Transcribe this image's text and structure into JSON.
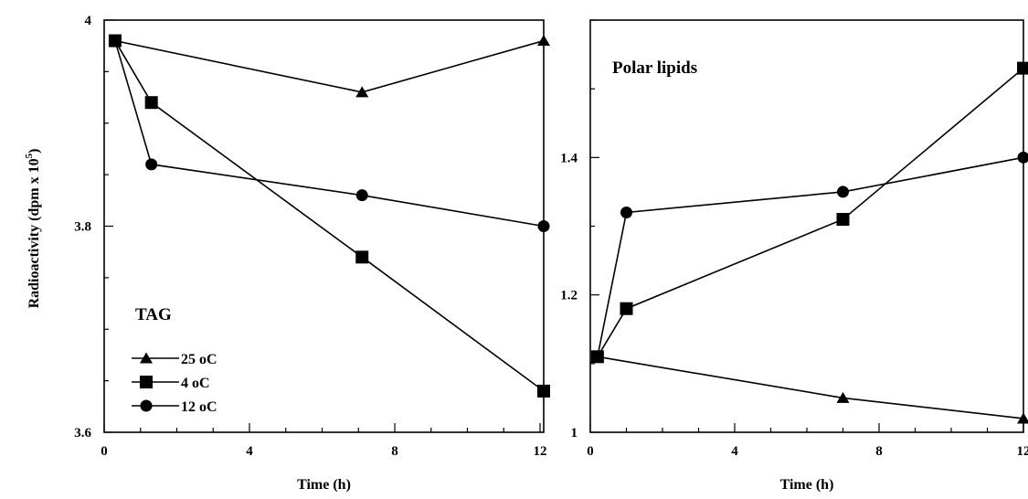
{
  "figure": {
    "ylabel": "Radioactivity (dpm x 10",
    "ylabel_sup": "5",
    "ylabel_end": ")"
  },
  "chart_data": [
    {
      "type": "line",
      "title": "TAG",
      "xlabel": "Time (h)",
      "xlim": [
        0,
        12.1
      ],
      "ylim": [
        3.6,
        4.0
      ],
      "xticks": [
        "0",
        "4",
        "8",
        "12"
      ],
      "xtick_values": [
        0,
        4,
        8,
        12
      ],
      "yticks": [
        "3.6",
        "3.8",
        "4"
      ],
      "ytick_values": [
        3.6,
        3.8,
        4.0
      ],
      "legend": {
        "position": "lower-left"
      },
      "series": [
        {
          "name": "25 oC",
          "marker": "triangle",
          "x": [
            0.3,
            7.1,
            12.1
          ],
          "y": [
            3.98,
            3.93,
            3.98
          ]
        },
        {
          "name": "4  oC",
          "marker": "square",
          "x": [
            0.3,
            1.3,
            7.1,
            12.1
          ],
          "y": [
            3.98,
            3.92,
            3.77,
            3.64
          ]
        },
        {
          "name": "12 oC",
          "marker": "circle",
          "x": [
            0.3,
            1.3,
            7.1,
            12.1
          ],
          "y": [
            3.98,
            3.86,
            3.83,
            3.8
          ]
        }
      ]
    },
    {
      "type": "line",
      "title": "Polar lipids",
      "xlabel": "Time (h)",
      "xlim": [
        0,
        12
      ],
      "ylim": [
        1.0,
        1.6
      ],
      "xticks": [
        "0",
        "4",
        "8",
        "12"
      ],
      "xtick_values": [
        0,
        4,
        8,
        12
      ],
      "yticks": [
        "1",
        "1.2",
        "1.4"
      ],
      "ytick_values": [
        1.0,
        1.2,
        1.4
      ],
      "series": [
        {
          "name": "25 oC",
          "marker": "triangle",
          "x": [
            0.2,
            7.0,
            12.0
          ],
          "y": [
            1.11,
            1.05,
            1.02
          ]
        },
        {
          "name": "4  oC",
          "marker": "square",
          "x": [
            0.2,
            1.0,
            7.0,
            12.0
          ],
          "y": [
            1.11,
            1.18,
            1.31,
            1.53
          ]
        },
        {
          "name": "12 oC",
          "marker": "circle",
          "x": [
            0.2,
            1.0,
            7.0,
            12.0
          ],
          "y": [
            1.11,
            1.32,
            1.35,
            1.4
          ]
        }
      ]
    }
  ]
}
